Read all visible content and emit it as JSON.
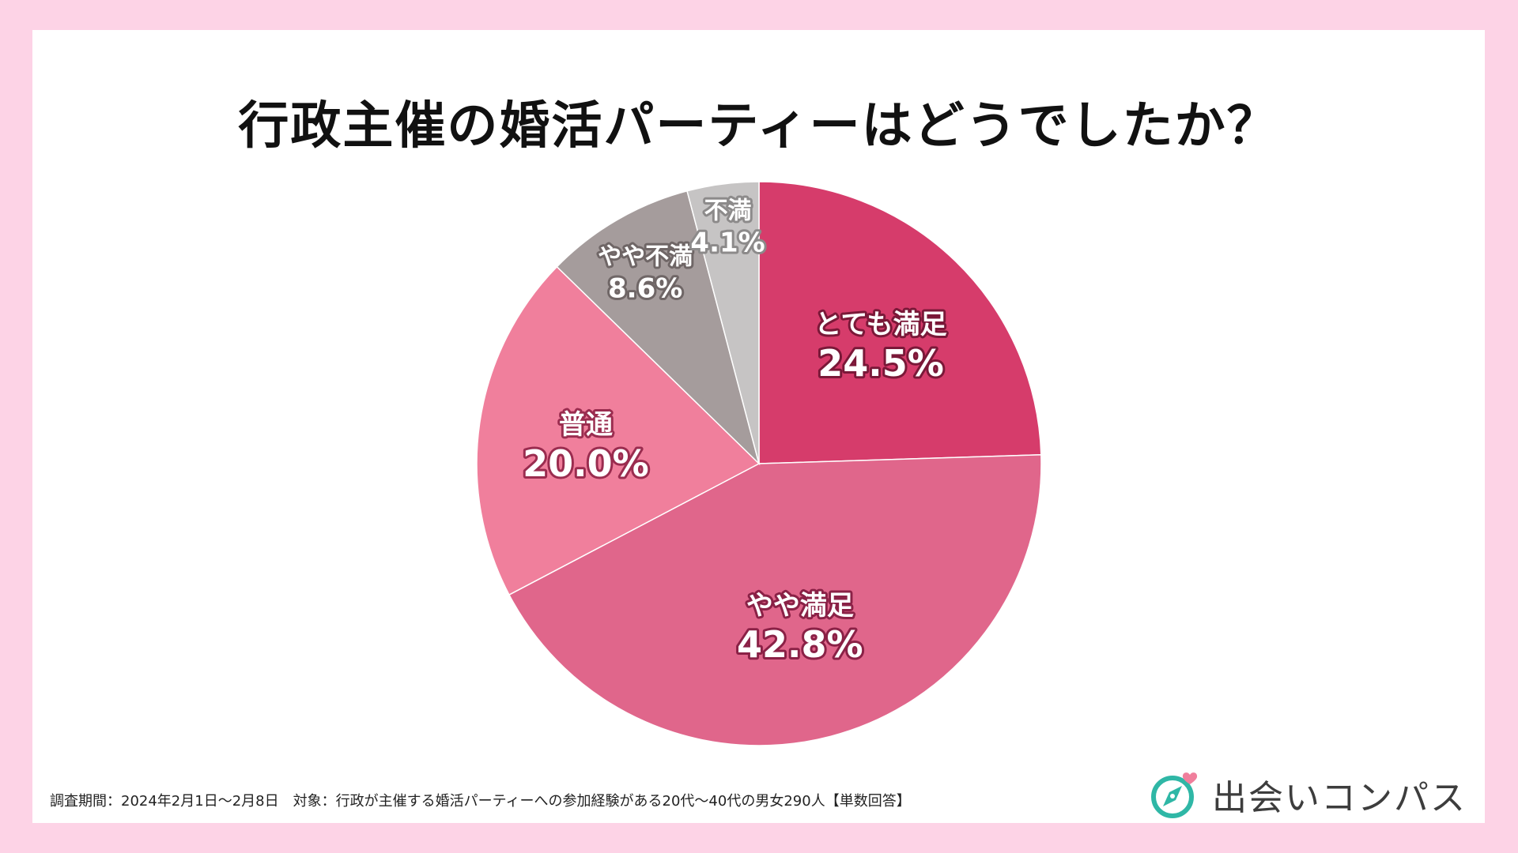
{
  "title": "行政主催の婚活パーティーはどうでしたか？",
  "footnote": "調査期間：2024年2月1日～2月8日　対象：行政が主催する婚活パーティーへの参加経験がある20代～40代の男女290人【単数回答】",
  "logo": {
    "text": "出会いコンパス",
    "icon": "compass-heart-icon"
  },
  "chart_data": {
    "type": "pie",
    "title": "行政主催の婚活パーティーはどうでしたか？",
    "start": "12 o'clock, clockwise",
    "slices": [
      {
        "label": "とても満足",
        "value": 24.5,
        "display": "24.5%",
        "color": "#d63c6b",
        "stroke": "#d63c6b"
      },
      {
        "label": "やや満足",
        "value": 42.8,
        "display": "42.8%",
        "color": "#e0668b",
        "stroke": "#e0668b"
      },
      {
        "label": "普通",
        "value": 20.0,
        "display": "20.0%",
        "color": "#f07f9c",
        "stroke": "#f07f9c"
      },
      {
        "label": "やや不満",
        "value": 8.6,
        "display": "8.6%",
        "color": "#a59c9c",
        "stroke": "#a59c9c"
      },
      {
        "label": "不満",
        "value": 4.1,
        "display": "4.1%",
        "color": "#c6c4c4",
        "stroke": "#bdbbbb"
      }
    ]
  }
}
